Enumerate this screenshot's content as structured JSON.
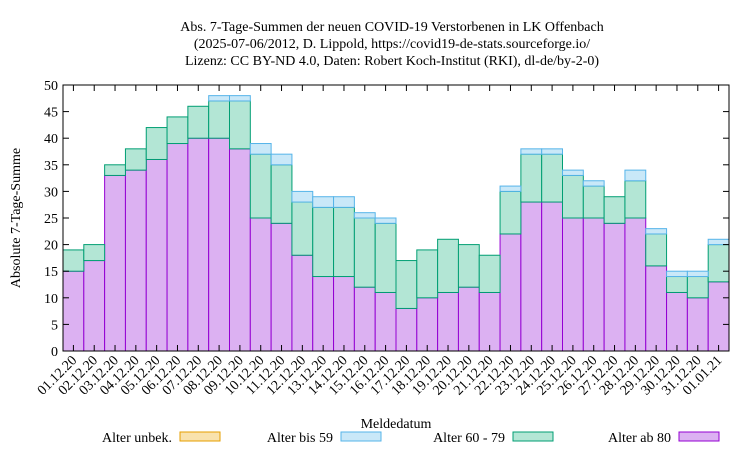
{
  "chart_data": {
    "type": "bar",
    "stacked": true,
    "title_lines": [
      "Abs. 7-Tage-Summen der neuen COVID-19 Verstorbenen in LK Offenbach",
      "(2025-07-06/2012, D. Lippold, https://covid19-de-stats.sourceforge.io/",
      "Lizenz: CC BY-ND 4.0, Daten: Robert Koch-Institut (RKI), dl-de/by-2-0)"
    ],
    "xlabel": "Meldedatum",
    "ylabel": "Absolute 7-Tage-Summe",
    "ylim": [
      0,
      50
    ],
    "yticks": [
      0,
      5,
      10,
      15,
      20,
      25,
      30,
      35,
      40,
      45,
      50
    ],
    "grid": false,
    "legend_position": "bottom",
    "categories": [
      "01.12.20",
      "02.12.20",
      "03.12.20",
      "04.12.20",
      "05.12.20",
      "06.12.20",
      "07.12.20",
      "08.12.20",
      "09.12.20",
      "10.12.20",
      "11.12.20",
      "12.12.20",
      "13.12.20",
      "14.12.20",
      "15.12.20",
      "16.12.20",
      "17.12.20",
      "18.12.20",
      "19.12.20",
      "20.12.20",
      "21.12.20",
      "22.12.20",
      "23.12.20",
      "24.12.20",
      "25.12.20",
      "26.12.20",
      "27.12.20",
      "28.12.20",
      "29.12.20",
      "30.12.20",
      "31.12.20",
      "01.01.21"
    ],
    "series": [
      {
        "name": "Alter ab 80",
        "fill": "#dcb1f2",
        "stroke": "#9400d3",
        "values": [
          15,
          17,
          33,
          34,
          36,
          39,
          40,
          40,
          38,
          25,
          24,
          18,
          14,
          14,
          12,
          11,
          8,
          10,
          11,
          12,
          11,
          22,
          28,
          28,
          25,
          25,
          24,
          25,
          16,
          11,
          10,
          13
        ]
      },
      {
        "name": "Alter 60 - 79",
        "fill": "#b3e6d5",
        "stroke": "#009e73",
        "values": [
          4,
          3,
          2,
          4,
          6,
          5,
          6,
          7,
          9,
          12,
          11,
          10,
          13,
          13,
          13,
          13,
          9,
          9,
          10,
          8,
          7,
          8,
          9,
          9,
          8,
          6,
          5,
          7,
          6,
          3,
          4,
          7
        ]
      },
      {
        "name": "Alter bis 59",
        "fill": "#c9e8f8",
        "stroke": "#56b4e9",
        "values": [
          0,
          0,
          0,
          0,
          0,
          0,
          0,
          1,
          1,
          2,
          2,
          2,
          2,
          2,
          1,
          1,
          0,
          0,
          0,
          0,
          0,
          1,
          1,
          1,
          1,
          1,
          0,
          2,
          1,
          1,
          1,
          1
        ]
      },
      {
        "name": "Alter unbek.",
        "fill": "#f9e2ad",
        "stroke": "#e69f00",
        "values": [
          0,
          0,
          0,
          0,
          0,
          0,
          0,
          0,
          0,
          0,
          0,
          0,
          0,
          0,
          0,
          0,
          0,
          0,
          0,
          0,
          0,
          0,
          0,
          0,
          0,
          0,
          0,
          0,
          0,
          0,
          0,
          0
        ]
      }
    ],
    "legend_order": [
      "Alter unbek.",
      "Alter bis 59",
      "Alter 60 - 79",
      "Alter ab 80"
    ]
  }
}
